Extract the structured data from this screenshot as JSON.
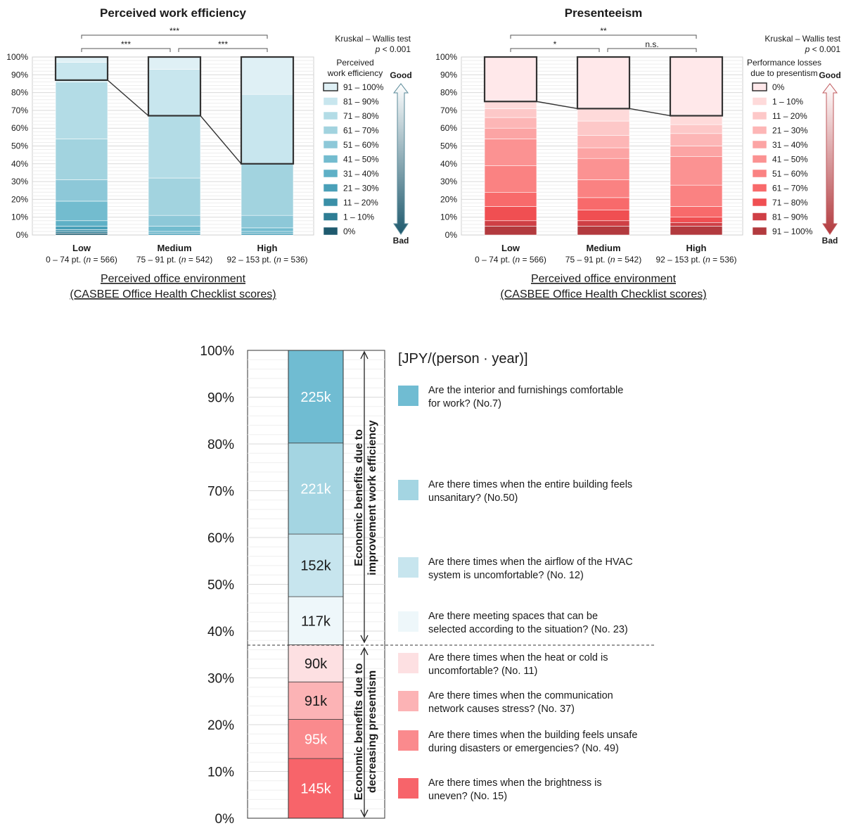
{
  "chart_data": [
    {
      "type": "bar",
      "stacked": true,
      "title": "Perceived work efficiency",
      "xlabel": [
        "Perceived office environment",
        "(CASBEE Office Health Checklist scores)"
      ],
      "ylim": [
        0,
        100
      ],
      "y_ticks": [
        "0%",
        "10%",
        "20%",
        "30%",
        "40%",
        "50%",
        "60%",
        "70%",
        "80%",
        "90%",
        "100%"
      ],
      "categories": [
        {
          "name": "Low",
          "range": "0 – 74 pt. (",
          "n": "n",
          "count": " = 566)"
        },
        {
          "name": "Medium",
          "range": "75 – 91 pt. (",
          "n": "n",
          "count": " = 542)"
        },
        {
          "name": "High",
          "range": "92 – 153 pt. (",
          "n": "n",
          "count": " = 536)"
        }
      ],
      "series": [
        {
          "name": "0%",
          "color": "#1f5a6e",
          "values": [
            1,
            0,
            0
          ]
        },
        {
          "name": "1 – 10%",
          "color": "#2e7d94",
          "values": [
            1,
            0,
            0
          ]
        },
        {
          "name": "11 – 20%",
          "color": "#3a8fa7",
          "values": [
            1,
            0,
            0
          ]
        },
        {
          "name": "21 – 30%",
          "color": "#4aa0b8",
          "values": [
            2,
            1,
            1
          ]
        },
        {
          "name": "31 – 40%",
          "color": "#5eb0c6",
          "values": [
            3,
            1,
            1
          ]
        },
        {
          "name": "41 – 50%",
          "color": "#73bccf",
          "values": [
            11,
            3,
            2
          ]
        },
        {
          "name": "51 – 60%",
          "color": "#8dc8d8",
          "values": [
            12,
            6,
            7
          ]
        },
        {
          "name": "61 – 70%",
          "color": "#a2d3df",
          "values": [
            23,
            21,
            29
          ]
        },
        {
          "name": "71 – 80%",
          "color": "#b3dce6",
          "values": [
            32,
            35,
            0
          ]
        },
        {
          "name": "81 – 90%",
          "color": "#c8e6ee",
          "values": [
            11,
            26,
            39
          ]
        },
        {
          "name": "91 – 100%",
          "color": "#dff0f5",
          "values": [
            3,
            7,
            21
          ]
        }
      ],
      "highlight_from": [
        87,
        67,
        40
      ],
      "legend_title": [
        "Perceived",
        "work efficiency"
      ],
      "legend_good": "Good",
      "legend_bad": "Bad",
      "test_name": "Kruskal – Wallis test",
      "test_p_italic": "p",
      "test_p_value": " < 0.001",
      "brackets": [
        {
          "from": 0,
          "to": 2,
          "label": "***",
          "level": "upper"
        },
        {
          "from": 0,
          "to": 1,
          "label": "***",
          "level": "lower"
        },
        {
          "from": 1,
          "to": 2,
          "label": "***",
          "level": "lower"
        }
      ]
    },
    {
      "type": "bar",
      "stacked": true,
      "title": "Presenteeism",
      "xlabel": [
        "Perceived office environment",
        "(CASBEE Office Health Checklist scores)"
      ],
      "ylim": [
        0,
        100
      ],
      "y_ticks": [
        "0%",
        "10%",
        "20%",
        "30%",
        "40%",
        "50%",
        "60%",
        "70%",
        "80%",
        "90%",
        "100%"
      ],
      "categories": [
        {
          "name": "Low",
          "range": "0 – 74 pt. (",
          "n": "n",
          "count": " = 566)"
        },
        {
          "name": "Medium",
          "range": "75 – 91 pt. (",
          "n": "n",
          "count": " = 542)"
        },
        {
          "name": "High",
          "range": "92 – 153 pt. (",
          "n": "n",
          "count": " = 536)"
        }
      ],
      "series": [
        {
          "name": "91 – 100%",
          "color": "#b23a3e",
          "values": [
            5,
            5,
            5
          ]
        },
        {
          "name": "81 – 90%",
          "color": "#cf3f45",
          "values": [
            3,
            3,
            2
          ]
        },
        {
          "name": "71 – 80%",
          "color": "#f04f52",
          "values": [
            8,
            6,
            3
          ]
        },
        {
          "name": "61 – 70%",
          "color": "#f86a6b",
          "values": [
            8,
            7,
            6
          ]
        },
        {
          "name": "51 – 60%",
          "color": "#fa8282",
          "values": [
            15,
            10,
            12
          ]
        },
        {
          "name": "41 – 50%",
          "color": "#fb9292",
          "values": [
            15,
            12,
            16
          ]
        },
        {
          "name": "31 – 40%",
          "color": "#fca4a4",
          "values": [
            6,
            6,
            6
          ]
        },
        {
          "name": "21 – 30%",
          "color": "#fdb6b6",
          "values": [
            6,
            7,
            7
          ]
        },
        {
          "name": "11 – 20%",
          "color": "#fdc8c8",
          "values": [
            5,
            8,
            5
          ]
        },
        {
          "name": "1 – 10%",
          "color": "#fedada",
          "values": [
            4,
            7,
            5
          ]
        },
        {
          "name": "0%",
          "color": "#ffe8ea",
          "values": [
            25,
            29,
            33
          ]
        }
      ],
      "highlight_from": [
        75,
        71,
        67
      ],
      "legend_title": [
        "Performance losses",
        "due to presentism"
      ],
      "legend_good": "Good",
      "legend_bad": "Bad",
      "test_name": "Kruskal – Wallis test",
      "test_p_italic": "p",
      "test_p_value": " < 0.001",
      "brackets": [
        {
          "from": 0,
          "to": 2,
          "label": "**",
          "level": "upper"
        },
        {
          "from": 0,
          "to": 1,
          "label": "*",
          "level": "lower"
        },
        {
          "from": 1,
          "to": 2,
          "label": "n.s.",
          "level": "lower"
        }
      ]
    },
    {
      "type": "bar",
      "stacked": true,
      "unit": "[JPY/(person · year)]",
      "ylim": [
        0,
        100
      ],
      "y_ticks": [
        "0%",
        "10%",
        "20%",
        "30%",
        "40%",
        "50%",
        "60%",
        "70%",
        "80%",
        "90%",
        "100%"
      ],
      "divider_at": 37,
      "upper_label": [
        "Economic benefits due to",
        "improvement work efficiency"
      ],
      "lower_label": [
        "Economic benefits due to",
        "decreasing presentism"
      ],
      "segments": [
        {
          "label": "145k",
          "value": 145,
          "color": "#f7646a",
          "text_color": "#ffffff",
          "item": [
            "Are there times when the brightness is",
            "uneven? (No. 15)"
          ]
        },
        {
          "label": "95k",
          "value": 95,
          "color": "#fa8a8d",
          "text_color": "#ffffff",
          "item": [
            "Are there times when the building feels unsafe",
            "during disasters or emergencies? (No. 49)"
          ]
        },
        {
          "label": "91k",
          "value": 91,
          "color": "#fcb3b5",
          "text_color": "#1a1a1a",
          "item": [
            "Are there times when the communication",
            "network causes stress? (No. 37)"
          ]
        },
        {
          "label": "90k",
          "value": 90,
          "color": "#fde0e2",
          "text_color": "#1a1a1a",
          "item": [
            "Are there times when the heat or cold is",
            "uncomfortable? (No. 11)"
          ]
        },
        {
          "label": "117k",
          "value": 117,
          "color": "#eef7fa",
          "text_color": "#1a1a1a",
          "item": [
            "Are there meeting spaces that can be",
            "selected according to the situation? (No. 23)"
          ]
        },
        {
          "label": "152k",
          "value": 152,
          "color": "#c7e5ee",
          "text_color": "#1a1a1a",
          "item": [
            "Are there times when the airflow of the HVAC",
            "system is uncomfortable? (No. 12)"
          ]
        },
        {
          "label": "221k",
          "value": 221,
          "color": "#a4d5e2",
          "text_color": "#ffffff",
          "item": [
            "Are there times when the entire building feels",
            "unsanitary? (No.50)"
          ]
        },
        {
          "label": "225k",
          "value": 225,
          "color": "#70bcd2",
          "text_color": "#ffffff",
          "item": [
            "Are the interior and furnishings comfortable",
            "for work? (No.7)"
          ]
        }
      ]
    }
  ]
}
